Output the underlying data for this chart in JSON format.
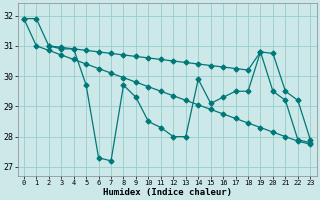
{
  "xlabel": "Humidex (Indice chaleur)",
  "bg_color": "#cce8e8",
  "grid_color": "#99cccc",
  "line_color": "#007878",
  "xlim": [
    -0.5,
    23.5
  ],
  "ylim": [
    26.7,
    32.4
  ],
  "yticks": [
    27,
    28,
    29,
    30,
    31,
    32
  ],
  "xticks": [
    0,
    1,
    2,
    3,
    4,
    5,
    6,
    7,
    8,
    9,
    10,
    11,
    12,
    13,
    14,
    15,
    16,
    17,
    18,
    19,
    20,
    21,
    22,
    23
  ],
  "s1_x": [
    0,
    1,
    2,
    3,
    4,
    5,
    6,
    7,
    8,
    9,
    10,
    11,
    12,
    13,
    14,
    15,
    16,
    17,
    18,
    19,
    20,
    21,
    22,
    23
  ],
  "s1_y": [
    31.9,
    31.9,
    31.0,
    30.9,
    30.9,
    29.7,
    27.3,
    27.2,
    29.7,
    29.3,
    28.5,
    28.3,
    28.0,
    28.0,
    29.9,
    29.1,
    29.3,
    29.5,
    29.5,
    30.8,
    29.5,
    29.2,
    27.9,
    27.8
  ],
  "s2_x": [
    2,
    3,
    4,
    5,
    6,
    7,
    8,
    9,
    10,
    11,
    12,
    13,
    14,
    15,
    16,
    17,
    18,
    19,
    20,
    21,
    22,
    23
  ],
  "s2_y": [
    31.0,
    30.95,
    30.9,
    30.85,
    30.8,
    30.75,
    30.7,
    30.65,
    30.6,
    30.55,
    30.5,
    30.45,
    30.4,
    30.35,
    30.3,
    30.25,
    30.2,
    30.8,
    30.75,
    29.5,
    29.2,
    27.9
  ],
  "s3_x": [
    0,
    1,
    2,
    3,
    4,
    5,
    6,
    7,
    8,
    9,
    10,
    11,
    12,
    13,
    14,
    15,
    16,
    17,
    18,
    19,
    20,
    21,
    22,
    23
  ],
  "s3_y": [
    31.9,
    31.0,
    30.85,
    30.7,
    30.55,
    30.4,
    30.25,
    30.1,
    29.95,
    29.8,
    29.65,
    29.5,
    29.35,
    29.2,
    29.05,
    28.9,
    28.75,
    28.6,
    28.45,
    28.3,
    28.15,
    28.0,
    27.85,
    27.75
  ]
}
